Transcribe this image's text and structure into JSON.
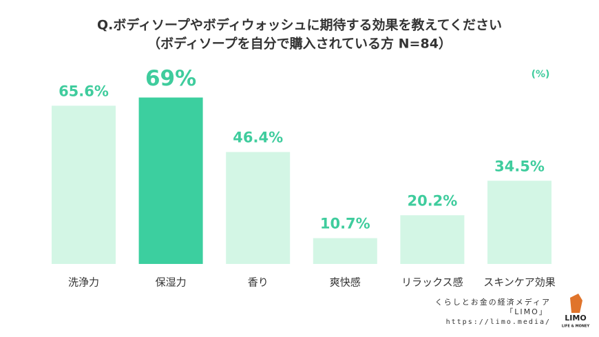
{
  "chart_data": {
    "type": "bar",
    "title": "Q.ボディソープやボディウォッシュに期待する効果を教えてください",
    "subtitle": "（ボディソープを自分で購入されている方 N=84）",
    "unit_label": "(%)",
    "categories": [
      "洗浄力",
      "保湿力",
      "香り",
      "爽快感",
      "リラックス感",
      "スキンケア効果"
    ],
    "values": [
      65.6,
      69,
      46.4,
      10.7,
      20.2,
      34.5
    ],
    "value_labels": [
      "65.6%",
      "69%",
      "46.4%",
      "10.7%",
      "20.2%",
      "34.5%"
    ],
    "colors": [
      "#d3f6e5",
      "#3ccf9f",
      "#d3f6e5",
      "#d3f6e5",
      "#d3f6e5",
      "#d3f6e5"
    ],
    "label_color": "#3fcc9d",
    "highlight_index": 1
  },
  "footer": {
    "tagline": "くらしとお金の経済メディア",
    "brand": "「LIMO」",
    "url": "https://limo.media/",
    "logo": "LIMO",
    "logo_sub": "LIFE & MONEY"
  }
}
